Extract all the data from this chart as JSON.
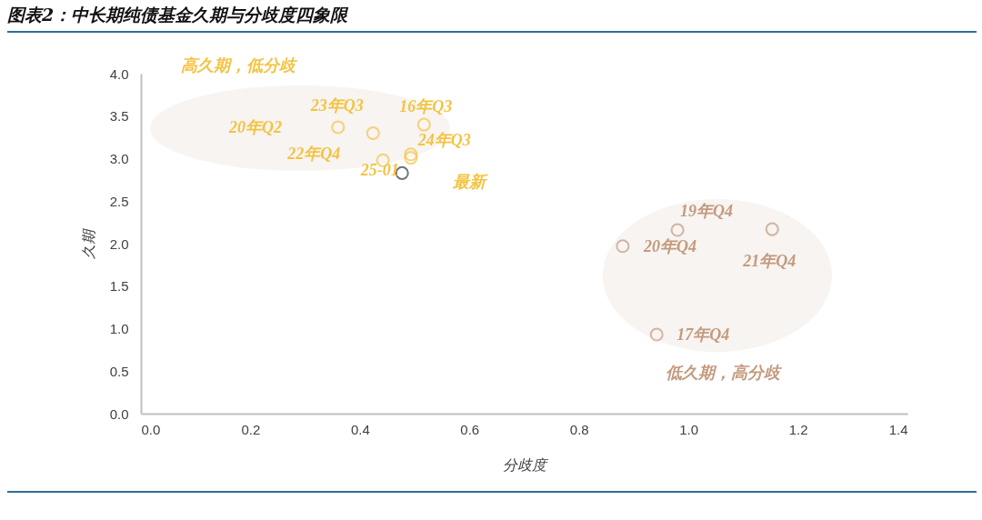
{
  "chart_data": {
    "type": "scatter",
    "title": "图表2：中长期纯债基金久期与分歧度四象限",
    "xlabel": "分歧度",
    "ylabel": "久期",
    "xlim": [
      0,
      1.4
    ],
    "ylim": [
      0,
      4
    ],
    "xticks": [
      {
        "value": 0,
        "label": "0.0"
      },
      {
        "value": 0.2,
        "label": "0.2"
      },
      {
        "value": 0.4,
        "label": "0.4"
      },
      {
        "value": 0.6,
        "label": "0.6"
      },
      {
        "value": 0.8,
        "label": "0.8"
      },
      {
        "value": 1,
        "label": "1.0"
      },
      {
        "value": 1.2,
        "label": "1.2"
      },
      {
        "value": 1.4,
        "label": "1.4"
      }
    ],
    "yticks": [
      {
        "value": 0,
        "label": "0.0"
      },
      {
        "value": 0.5,
        "label": "0.5"
      },
      {
        "value": 1,
        "label": "1.0"
      },
      {
        "value": 1.5,
        "label": "1.5"
      },
      {
        "value": 2,
        "label": "2.0"
      },
      {
        "value": 2.5,
        "label": "2.5"
      },
      {
        "value": 3,
        "label": "3.0"
      },
      {
        "value": 3.5,
        "label": "3.5"
      },
      {
        "value": 4,
        "label": "4.0"
      }
    ],
    "marker": "circle",
    "grid": false,
    "series": [
      {
        "color": "#f5c342",
        "x": [
          0.36,
          0.424,
          0.517,
          0.442,
          0.493,
          0.493
        ],
        "values": [
          3.37,
          3.3,
          3.4,
          2.98,
          3.05,
          3.01
        ]
      },
      {
        "color": "#2e3a4a",
        "x": [
          0.477
        ],
        "values": [
          2.83
        ]
      },
      {
        "color": "#c49a7e",
        "x": [
          0.88,
          0.98,
          1.153,
          0.942
        ],
        "values": [
          1.97,
          2.16,
          2.17,
          0.93
        ]
      }
    ],
    "annotations": [
      "高久期，低分歧",
      "20年Q2",
      {
        "text": "23年Q3",
        "x": 0.36,
        "y": 3.37
      },
      {
        "text": "16年Q3",
        "x": 0.517,
        "y": 3.4
      },
      {
        "text": "22年Q4",
        "x": 0.442,
        "y": 2.98
      },
      {
        "text": "24年Q3",
        "x": 0.493,
        "y": 3.05
      },
      {
        "text": "25-01",
        "x": 0.493,
        "y": 3.01
      },
      "最新",
      {
        "text": "19年Q4",
        "x": 0.98,
        "y": 2.16
      },
      {
        "text": "20年Q4",
        "x": 0.88,
        "y": 1.97
      },
      {
        "text": "21年Q4",
        "x": 1.153,
        "y": 2.17
      },
      {
        "text": "17年Q4",
        "x": 0.942,
        "y": 0.93
      },
      "低久期，高分歧"
    ]
  }
}
